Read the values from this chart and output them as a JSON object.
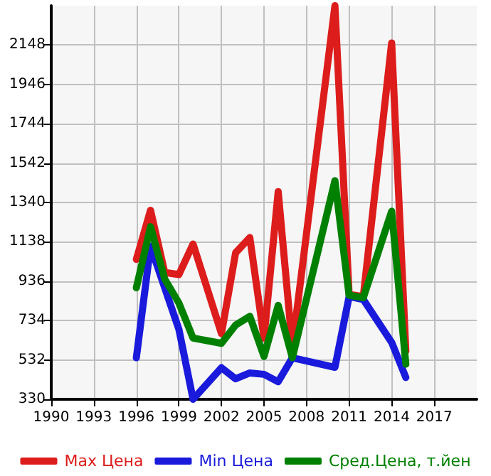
{
  "chart_data": {
    "type": "line",
    "xlim": [
      1990,
      2020
    ],
    "xticks": [
      1990,
      1993,
      1996,
      1999,
      2002,
      2005,
      2008,
      2011,
      2014,
      2017
    ],
    "ylim": [
      330,
      2350
    ],
    "yticks": [
      330,
      532,
      734,
      936,
      1138,
      1340,
      1542,
      1744,
      1946,
      2148
    ],
    "grid": true,
    "legend": "bottom",
    "marker": "none",
    "line_style": "solid",
    "series": [
      {
        "name": "Max Цена",
        "color": "#dd1c1c",
        "x": [
          1996,
          1997,
          1998,
          1999,
          2000,
          2002,
          2003,
          2004,
          2005,
          2006,
          2007,
          2010,
          2011,
          2012,
          2014,
          2015
        ],
        "values": [
          1048,
          1300,
          981,
          970,
          1127,
          667,
          1082,
          1160,
          644,
          1396,
          599,
          2350,
          868,
          857,
          2159,
          577
        ]
      },
      {
        "name": "Min Цена",
        "color": "#1a1adc",
        "x": [
          1996,
          1997,
          1998,
          1999,
          2000,
          2002,
          2003,
          2004,
          2005,
          2006,
          2007,
          2010,
          2011,
          2012,
          2014,
          2015
        ],
        "values": [
          543,
          1115,
          902,
          689,
          330,
          492,
          435,
          465,
          458,
          420,
          543,
          494,
          857,
          842,
          622,
          442
        ]
      },
      {
        "name": "Сред.Цена, т.йен",
        "color": "#008000",
        "x": [
          1996,
          1997,
          1998,
          1999,
          2000,
          2002,
          2003,
          2004,
          2005,
          2006,
          2007,
          2010,
          2011,
          2012,
          2014,
          2015
        ],
        "values": [
          902,
          1216,
          947,
          824,
          644,
          617,
          711,
          756,
          550,
          812,
          543,
          1452,
          864,
          851,
          1295,
          510
        ]
      }
    ]
  }
}
